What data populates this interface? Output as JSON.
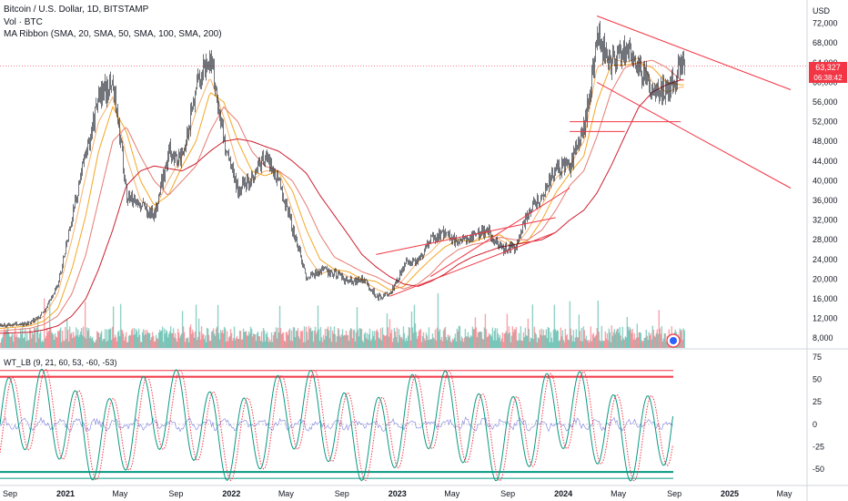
{
  "header": {
    "title": "Bitcoin / U.S. Dollar, 1D, BITSTAMP",
    "volume_label": "Vol · BTC",
    "ribbon_label": "MA Ribbon (SMA, 20, SMA, 50, SMA, 100, SMA, 200)",
    "oscillator_label": "WT_LB (9, 21, 60, 53, -60, -53)"
  },
  "price_tag": {
    "price": "63,327",
    "countdown": "06:38:42",
    "color": "#f23645"
  },
  "chart_data": [
    {
      "type": "line",
      "name": "price",
      "currency": "USD",
      "ylim": [
        6000,
        76000
      ],
      "yticks": [
        "72,000",
        "68,000",
        "64,000",
        "60,000",
        "56,000",
        "52,000",
        "48,000",
        "44,000",
        "40,000",
        "36,000",
        "32,000",
        "28,000",
        "24,000",
        "20,000",
        "16,000",
        "12,000",
        "8,000"
      ],
      "xticks": [
        "Sep",
        "2021",
        "May",
        "Sep",
        "2022",
        "May",
        "Sep",
        "2023",
        "May",
        "Sep",
        "2024",
        "May",
        "Sep",
        "2025",
        "May"
      ],
      "series": [
        {
          "color": "#131722",
          "x": [
            "2020-08",
            "2020-10",
            "2020-11",
            "2020-12",
            "2021-01",
            "2021-02",
            "2021-03",
            "2021-04",
            "2021-05",
            "2021-06",
            "2021-07",
            "2021-08",
            "2021-09",
            "2021-10",
            "2021-11",
            "2021-12",
            "2022-01",
            "2022-02",
            "2022-03",
            "2022-04",
            "2022-05",
            "2022-06",
            "2022-07",
            "2022-08",
            "2022-09",
            "2022-10",
            "2022-11",
            "2022-12",
            "2023-01",
            "2023-02",
            "2023-03",
            "2023-04",
            "2023-05",
            "2023-06",
            "2023-07",
            "2023-08",
            "2023-09",
            "2023-10",
            "2023-11",
            "2023-12",
            "2024-01",
            "2024-02",
            "2024-03",
            "2024-04",
            "2024-05",
            "2024-06",
            "2024-07",
            "2024-08",
            "2024-09"
          ],
          "y": [
            10500,
            11000,
            13500,
            19000,
            33000,
            46000,
            57000,
            60000,
            37000,
            35000,
            33000,
            46000,
            44000,
            60000,
            65000,
            48000,
            38000,
            41000,
            45000,
            40000,
            30000,
            20000,
            22000,
            21000,
            19500,
            20000,
            16500,
            16800,
            23000,
            24000,
            28000,
            29500,
            27000,
            29000,
            30000,
            26000,
            26500,
            34000,
            37000,
            42500,
            43000,
            51000,
            69000,
            64000,
            67000,
            63000,
            58000,
            58500,
            63327
          ]
        }
      ],
      "ma_ribbon": [
        {
          "name": "SMA 20",
          "color": "#f6b26b",
          "y": [
            10500,
            10800,
            12500,
            17000,
            28000,
            41000,
            52000,
            57000,
            45000,
            36000,
            34000,
            40000,
            45000,
            54000,
            61000,
            53000,
            43000,
            40000,
            42000,
            42000,
            34000,
            25000,
            21000,
            22000,
            20500,
            19800,
            18000,
            16800,
            20000,
            23500,
            25500,
            28500,
            28000,
            27500,
            29500,
            28000,
            26300,
            30000,
            35000,
            40500,
            43000,
            48000,
            63000,
            65000,
            64000,
            65000,
            60000,
            58000,
            59000
          ]
        },
        {
          "name": "SMA 50",
          "color": "#f5a623",
          "y": [
            10000,
            10500,
            11500,
            14000,
            22000,
            33000,
            46000,
            55000,
            50000,
            40000,
            35000,
            37000,
            43000,
            48000,
            58000,
            56000,
            48000,
            42000,
            41000,
            42000,
            38000,
            30000,
            24000,
            22000,
            21500,
            20000,
            19500,
            17800,
            18500,
            21500,
            24000,
            26500,
            28000,
            27500,
            28500,
            29000,
            27000,
            27800,
            32000,
            37500,
            41500,
            45000,
            56000,
            63500,
            63500,
            64000,
            63000,
            60000,
            59500
          ]
        },
        {
          "name": "SMA 100",
          "color": "#e67c73",
          "y": [
            9500,
            10000,
            10800,
            12500,
            17000,
            25000,
            36000,
            48000,
            51000,
            45000,
            40000,
            37000,
            40000,
            43000,
            50000,
            55000,
            52000,
            46000,
            43000,
            42000,
            40000,
            35000,
            29000,
            24500,
            23000,
            21500,
            20500,
            19000,
            18000,
            19000,
            21000,
            24000,
            26000,
            27000,
            27500,
            28500,
            28000,
            28000,
            30000,
            34000,
            39000,
            42000,
            49000,
            58000,
            63000,
            64000,
            64500,
            63000,
            60500
          ]
        },
        {
          "name": "SMA 200",
          "color": "#cc1f2f",
          "y": [
            9000,
            9200,
            9700,
            10500,
            12500,
            16000,
            22000,
            30000,
            39000,
            42000,
            43000,
            42500,
            42000,
            43500,
            46000,
            48000,
            48500,
            48000,
            47000,
            46000,
            44000,
            41500,
            37000,
            33000,
            29000,
            25000,
            22500,
            20500,
            19000,
            18500,
            19500,
            21000,
            23000,
            24500,
            25500,
            26500,
            27000,
            27500,
            28000,
            29500,
            32000,
            34000,
            37500,
            43000,
            49000,
            55000,
            58000,
            59500,
            60500
          ]
        }
      ],
      "trendlines_color": "#f23645"
    },
    {
      "type": "line",
      "name": "WT_LB",
      "ylim": [
        -67,
        83
      ],
      "yticks": [
        "75",
        "50",
        "25",
        "0",
        "-25",
        "-50"
      ],
      "levels": [
        60,
        53,
        -53,
        -60
      ],
      "level_colors": {
        "overbought": "#f23645",
        "oversold": "#089981"
      },
      "wave_color": "#089981",
      "signal_color": "#f23645",
      "diff_color": "#5b5fd6"
    }
  ]
}
